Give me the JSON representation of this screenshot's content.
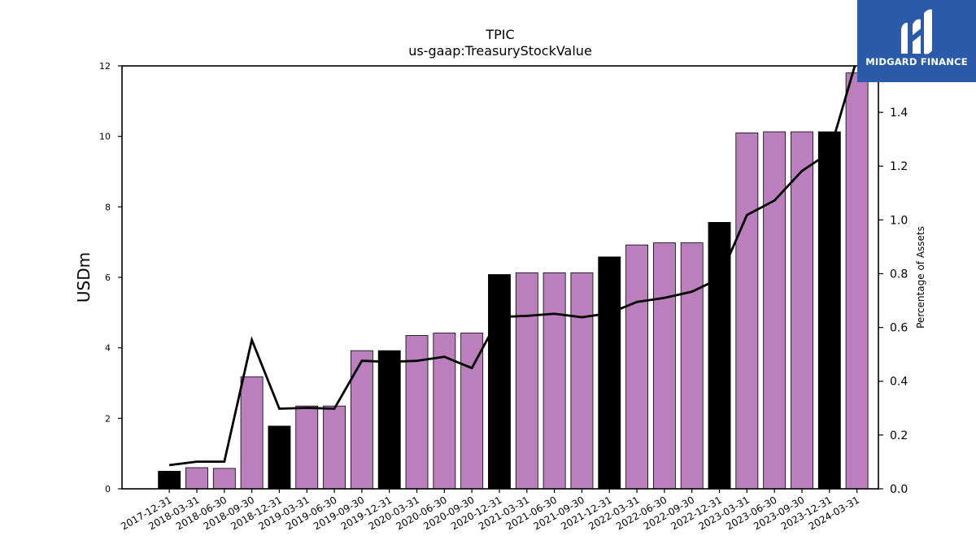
{
  "chart_data": {
    "type": "bar",
    "title": "TPIC",
    "subtitle": "us-gaap:TreasuryStockValue",
    "ylabel": "USDm",
    "y2label": "Percentage of Assets",
    "ylim": [
      0,
      12
    ],
    "y2lim": [
      0,
      1.5727
    ],
    "yticks": [
      0,
      2,
      4,
      6,
      8,
      10,
      12
    ],
    "y2ticks": [
      0.0,
      0.2,
      0.4,
      0.6,
      0.8,
      1.0,
      1.2,
      1.4
    ],
    "bar_colors": {
      "annual": "#000000",
      "quarterly": "#bb7fbd"
    },
    "line_color": "#000000",
    "categories": [
      "2017-12-31",
      "2018-03-31",
      "2018-06-30",
      "2018-09-30",
      "2018-12-31",
      "2019-03-31",
      "2019-06-30",
      "2019-09-30",
      "2019-12-31",
      "2020-03-31",
      "2020-06-30",
      "2020-09-30",
      "2020-12-31",
      "2021-03-31",
      "2021-06-30",
      "2021-09-30",
      "2021-12-31",
      "2022-03-31",
      "2022-06-30",
      "2022-09-30",
      "2022-12-31",
      "2023-03-31",
      "2023-06-30",
      "2023-09-30",
      "2023-12-31",
      "2024-03-31"
    ],
    "annual": [
      true,
      false,
      false,
      false,
      true,
      false,
      false,
      false,
      true,
      false,
      false,
      false,
      true,
      false,
      false,
      false,
      true,
      false,
      false,
      false,
      true,
      false,
      false,
      false,
      true,
      false
    ],
    "series": [
      {
        "values": [
          0.5,
          0.6,
          0.58,
          3.18,
          1.78,
          2.35,
          2.35,
          3.92,
          3.92,
          4.35,
          4.42,
          4.42,
          6.08,
          6.13,
          6.13,
          6.13,
          6.58,
          6.92,
          6.98,
          6.98,
          7.56,
          10.1,
          10.13,
          10.13,
          10.13,
          11.8
        ]
      },
      {
        "axis": "right",
        "values": [
          0.088,
          0.101,
          0.101,
          0.554,
          0.298,
          0.301,
          0.298,
          0.476,
          0.472,
          0.476,
          0.491,
          0.449,
          0.639,
          0.643,
          0.651,
          0.638,
          0.653,
          0.695,
          0.71,
          0.733,
          0.782,
          1.018,
          1.072,
          1.182,
          1.25,
          1.6
        ]
      }
    ]
  },
  "logo": {
    "text": "MIDGARD FINANCE"
  }
}
